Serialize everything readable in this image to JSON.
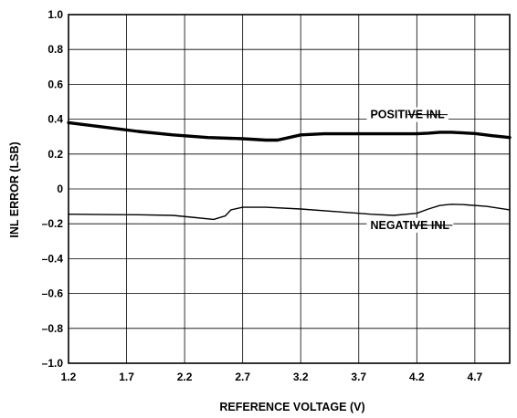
{
  "chart_data": {
    "type": "line",
    "xlabel": "REFERENCE VOLTAGE (V)",
    "ylabel": "INL ERROR (LSB)",
    "xlim": [
      1.2,
      5.0
    ],
    "ylim": [
      -1.0,
      1.0
    ],
    "x_ticks": [
      1.2,
      1.7,
      2.2,
      2.7,
      3.2,
      3.7,
      4.2,
      4.7
    ],
    "x_tick_labels": [
      "1.2",
      "1.7",
      "2.2",
      "2.7",
      "3.2",
      "3.7",
      "4.2",
      "4.7"
    ],
    "y_ticks": [
      1.0,
      0.8,
      0.6,
      0.4,
      0.2,
      0,
      -0.2,
      -0.4,
      -0.6,
      -0.8,
      -1.0
    ],
    "y_tick_labels": [
      "1.0",
      "0.8",
      "0.6",
      "0.4",
      "0.2",
      "0",
      "–0.2",
      "–0.4",
      "–0.6",
      "–0.8",
      "–1.0"
    ],
    "grid": true,
    "legend": "none",
    "series": [
      {
        "name": "POSITIVE INL",
        "color": "#000000",
        "line_style": "thick",
        "x": [
          1.2,
          1.5,
          1.8,
          2.1,
          2.4,
          2.7,
          2.9,
          3.0,
          3.1,
          3.2,
          3.4,
          3.7,
          4.0,
          4.2,
          4.3,
          4.4,
          4.5,
          4.7,
          4.85,
          5.0
        ],
        "y": [
          0.38,
          0.355,
          0.33,
          0.31,
          0.295,
          0.288,
          0.28,
          0.28,
          0.295,
          0.31,
          0.316,
          0.316,
          0.316,
          0.316,
          0.32,
          0.325,
          0.325,
          0.318,
          0.305,
          0.295
        ]
      },
      {
        "name": "NEGATIVE INL",
        "color": "#000000",
        "line_style": "thin",
        "x": [
          1.2,
          1.5,
          1.8,
          2.1,
          2.3,
          2.45,
          2.55,
          2.6,
          2.7,
          2.9,
          3.2,
          3.5,
          3.8,
          4.0,
          4.2,
          4.3,
          4.4,
          4.5,
          4.6,
          4.8,
          5.0
        ],
        "y": [
          -0.145,
          -0.147,
          -0.148,
          -0.152,
          -0.165,
          -0.175,
          -0.155,
          -0.12,
          -0.105,
          -0.105,
          -0.115,
          -0.13,
          -0.145,
          -0.152,
          -0.14,
          -0.115,
          -0.095,
          -0.088,
          -0.09,
          -0.1,
          -0.12
        ]
      }
    ],
    "annotations": [
      {
        "text": "POSITIVE INL",
        "x": 3.8,
        "y": 0.405,
        "leader_to_x": 4.12
      },
      {
        "text": "NEGATIVE INL",
        "x": 3.8,
        "y": -0.23,
        "leader_to_x": 4.15
      }
    ]
  }
}
